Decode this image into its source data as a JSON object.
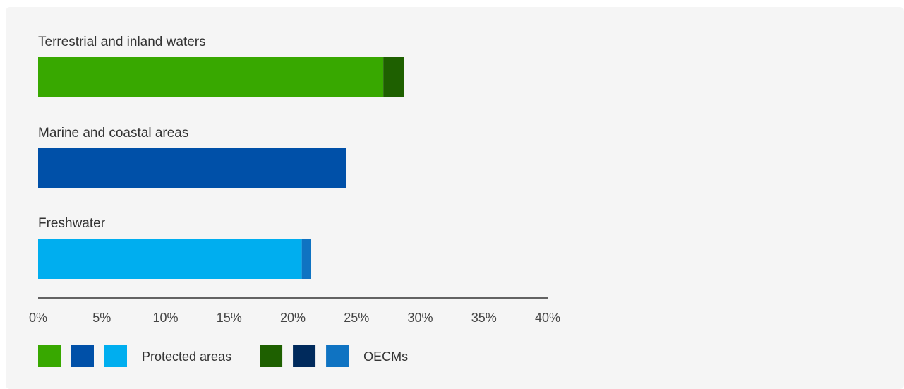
{
  "chart_data": {
    "type": "bar",
    "orientation": "horizontal",
    "stacked": true,
    "title": "",
    "xlabel": "",
    "ylabel": "",
    "xlim": [
      0,
      40
    ],
    "grid": false,
    "legend_position": "bottom-left",
    "categories": [
      "Terrestrial and inland waters",
      "Marine and coastal areas",
      "Freshwater"
    ],
    "series": [
      {
        "name": "Protected areas",
        "values": [
          27.1,
          24.2,
          20.7
        ],
        "colors": [
          "#38a800",
          "#0050a8",
          "#00aeef"
        ]
      },
      {
        "name": "OECMs",
        "values": [
          1.6,
          0.0,
          0.7
        ],
        "colors": [
          "#1e6000",
          "#002a5c",
          "#0f73c2"
        ]
      }
    ],
    "x_ticks": [
      "0%",
      "5%",
      "10%",
      "15%",
      "20%",
      "25%",
      "30%",
      "35%",
      "40%"
    ],
    "x_tick_values": [
      0,
      5,
      10,
      15,
      20,
      25,
      30,
      35,
      40
    ]
  }
}
